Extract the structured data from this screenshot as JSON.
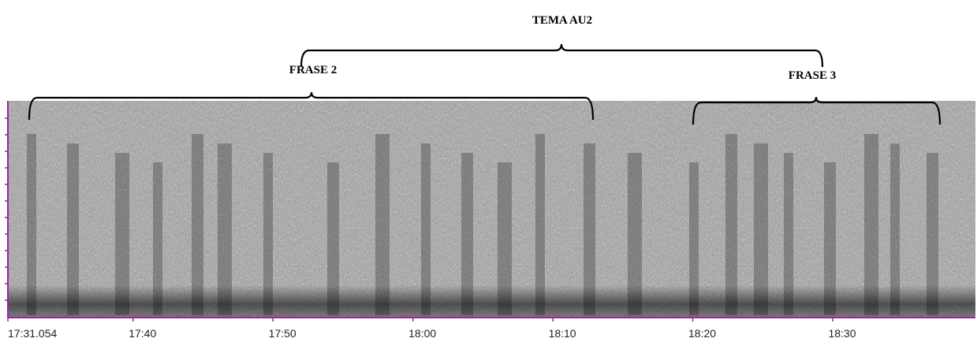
{
  "chart_data": {
    "type": "spectrogram",
    "annotations": {
      "theme": "TEMA AU2",
      "phrase_2": "FRASE 2",
      "phrase_3": "FRASE 3"
    },
    "xlim": [
      1051.054,
      1120.2
    ],
    "xticks": [
      {
        "value": 1051.054,
        "label": "17:31.054"
      },
      {
        "value": 1060,
        "label": "17:40"
      },
      {
        "value": 1070,
        "label": "17:50"
      },
      {
        "value": 1080,
        "label": "18:00"
      },
      {
        "value": 1090,
        "label": "18:10"
      },
      {
        "value": 1100,
        "label": "18:20"
      },
      {
        "value": 1110,
        "label": "18:30"
      }
    ]
  }
}
